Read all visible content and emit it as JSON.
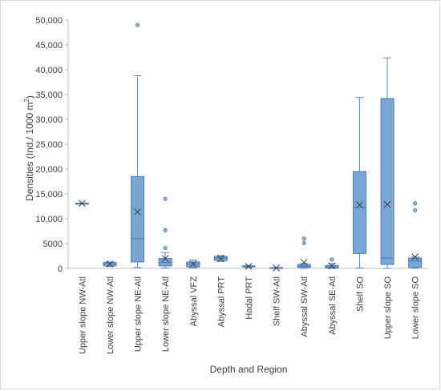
{
  "chart_data": {
    "type": "box",
    "xlabel": "Depth and Region",
    "ylabel": "Densities (Ind./ 1000 m²)",
    "ylabel_parts": {
      "main": "Densities (Ind./ 1000 m",
      "sup": "2",
      "close": ")"
    },
    "ylim": [
      0,
      50000
    ],
    "yticks": [
      {
        "value": 0,
        "label": "0"
      },
      {
        "value": 5000,
        "label": "5000"
      },
      {
        "value": 10000,
        "label": "10,000"
      },
      {
        "value": 15000,
        "label": "15,000"
      },
      {
        "value": 20000,
        "label": "20,000"
      },
      {
        "value": 25000,
        "label": "25,000"
      },
      {
        "value": 30000,
        "label": "30,000"
      },
      {
        "value": 35000,
        "label": "35,000"
      },
      {
        "value": 40000,
        "label": "40,000"
      },
      {
        "value": 45000,
        "label": "45,000"
      },
      {
        "value": 50000,
        "label": "50,000"
      }
    ],
    "grid": false,
    "categories": [
      "Upper slope NW-Atl",
      "Lower slope NW-Atl",
      "Upper slope NE-Atl",
      "Lower slope NE-Atl",
      "Abyssal VFZ",
      "Abyssal PRT",
      "Hadal PRT",
      "Shelf SW-Atl",
      "Abyssal SW-Atl",
      "Abyssal SE-Atl",
      "Shelf SO",
      "Upper slope SO",
      "Lower slope SO"
    ],
    "boxes": [
      {
        "min": 13100,
        "q1": 13100,
        "median": 13100,
        "q3": 13100,
        "max": 13100,
        "mean": 13100,
        "outliers": []
      },
      {
        "min": 400,
        "q1": 500,
        "median": 900,
        "q3": 1200,
        "max": 1300,
        "mean": 900,
        "outliers": []
      },
      {
        "min": 200,
        "q1": 1300,
        "median": 6000,
        "q3": 18500,
        "max": 38800,
        "mean": 11400,
        "outliers": [
          49000
        ]
      },
      {
        "min": 100,
        "q1": 500,
        "median": 1200,
        "q3": 2000,
        "max": 3200,
        "mean": 2000,
        "outliers": [
          4100,
          7700,
          14000
        ]
      },
      {
        "min": 100,
        "q1": 300,
        "median": 900,
        "q3": 1300,
        "max": 1700,
        "mean": 900,
        "outliers": []
      },
      {
        "min": 1400,
        "q1": 1600,
        "median": 2100,
        "q3": 2400,
        "max": 2600,
        "mean": 2000,
        "outliers": []
      },
      {
        "min": 200,
        "q1": 300,
        "median": 400,
        "q3": 500,
        "max": 600,
        "mean": 400,
        "outliers": []
      },
      {
        "min": 0,
        "q1": 50,
        "median": 100,
        "q3": 150,
        "max": 200,
        "mean": 100,
        "outliers": []
      },
      {
        "min": 0,
        "q1": 200,
        "median": 400,
        "q3": 800,
        "max": 1000,
        "mean": 1200,
        "outliers": [
          5100,
          6000
        ]
      },
      {
        "min": 0,
        "q1": 100,
        "median": 300,
        "q3": 600,
        "max": 1000,
        "mean": 500,
        "outliers": [
          1800
        ]
      },
      {
        "min": 100,
        "q1": 3000,
        "median": 12300,
        "q3": 19500,
        "max": 34400,
        "mean": 12800,
        "outliers": []
      },
      {
        "min": 0,
        "q1": 800,
        "median": 2100,
        "q3": 34200,
        "max": 42400,
        "mean": 12900,
        "outliers": []
      },
      {
        "min": 0,
        "q1": 200,
        "median": 1500,
        "q3": 2100,
        "max": 2300,
        "mean": 2300,
        "outliers": [
          11700,
          13100
        ]
      }
    ],
    "colors": {
      "box_fill": "#7aa6d6",
      "box_stroke": "#4a7fb8",
      "whisker": "#5b8bc4",
      "mean_marker": "#404040",
      "outlier_fill": "#8fb4de",
      "axis": "#bfbfbf",
      "text": "#404040"
    }
  }
}
